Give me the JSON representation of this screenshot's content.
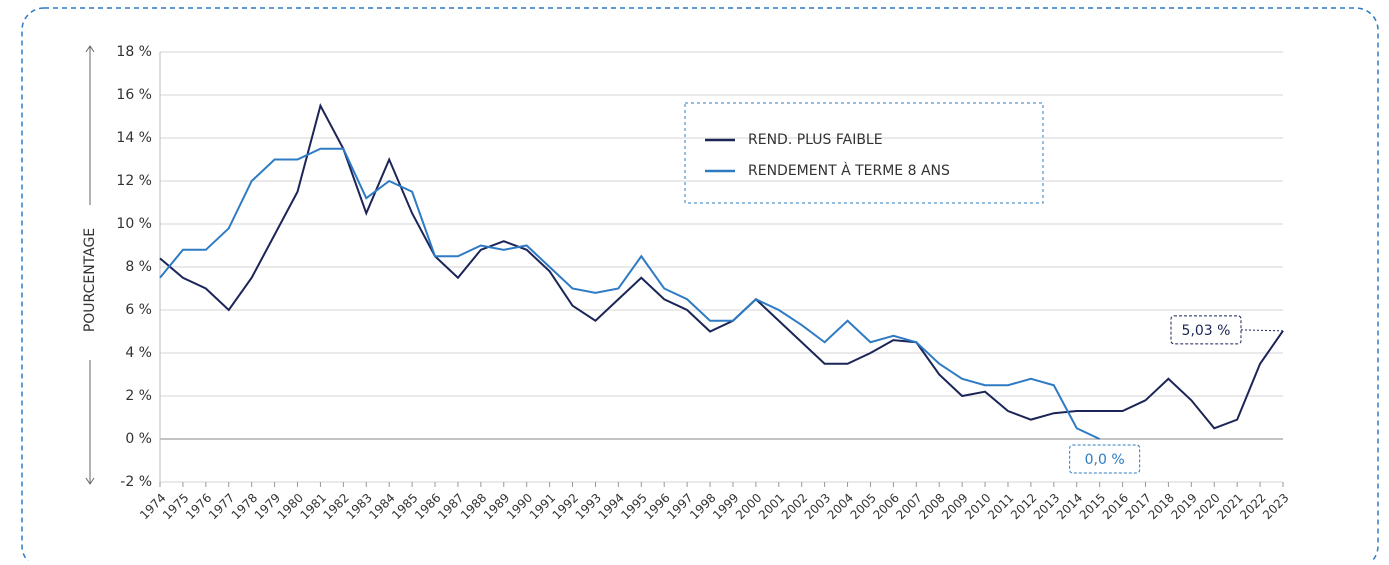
{
  "chart_data": {
    "type": "line",
    "y_label": "POURCENTAGE",
    "x": [
      1974,
      1975,
      1976,
      1977,
      1978,
      1979,
      1980,
      1981,
      1982,
      1983,
      1984,
      1985,
      1986,
      1987,
      1988,
      1989,
      1990,
      1991,
      1992,
      1993,
      1994,
      1995,
      1996,
      1997,
      1998,
      1999,
      2000,
      2001,
      2002,
      2003,
      2004,
      2005,
      2006,
      2007,
      2008,
      2009,
      2010,
      2011,
      2012,
      2013,
      2014,
      2015,
      2016,
      2017,
      2018,
      2019,
      2020,
      2021,
      2022,
      2023
    ],
    "series": [
      {
        "name": "REND. PLUS FAIBLE",
        "color": "#1b2557",
        "values": [
          8.4,
          7.5,
          7.0,
          6.0,
          7.5,
          9.5,
          11.5,
          15.5,
          13.5,
          10.5,
          13.0,
          10.5,
          8.5,
          7.5,
          8.8,
          9.2,
          8.8,
          7.8,
          6.2,
          5.5,
          6.5,
          7.5,
          6.5,
          6.0,
          5.0,
          5.5,
          6.5,
          5.5,
          4.5,
          3.5,
          3.5,
          4.0,
          4.6,
          4.5,
          3.0,
          2.0,
          2.2,
          1.3,
          0.9,
          1.2,
          1.3,
          1.3,
          1.3,
          1.8,
          2.8,
          1.8,
          0.5,
          0.9,
          3.5,
          5.03
        ]
      },
      {
        "name": "RENDEMENT À TERME 8 ANS",
        "color": "#2e7bc4",
        "values": [
          7.5,
          8.8,
          8.8,
          9.8,
          12.0,
          13.0,
          13.0,
          13.5,
          13.5,
          11.2,
          12.0,
          11.5,
          8.5,
          8.5,
          9.0,
          8.8,
          9.0,
          8.0,
          7.0,
          6.8,
          7.0,
          8.5,
          7.0,
          6.5,
          5.5,
          5.5,
          6.5,
          6.0,
          5.3,
          4.5,
          5.5,
          4.5,
          4.8,
          4.5,
          3.5,
          2.8,
          2.5,
          2.5,
          2.8,
          2.5,
          0.5,
          0.0,
          null,
          null,
          null,
          null,
          null,
          null,
          null,
          null
        ]
      }
    ],
    "annotations": [
      "5,03 %",
      "0,0 %"
    ],
    "xlim": [
      1974,
      2023
    ],
    "xticks": [
      1974,
      1975,
      1976,
      1977,
      1978,
      1979,
      1980,
      1981,
      1982,
      1983,
      1984,
      1985,
      1986,
      1987,
      1988,
      1989,
      1990,
      1991,
      1992,
      1993,
      1994,
      1995,
      1996,
      1997,
      1998,
      1999,
      2000,
      2001,
      2002,
      2003,
      2004,
      2005,
      2006,
      2007,
      2008,
      2009,
      2010,
      2011,
      2012,
      2013,
      2014,
      2015,
      2016,
      2017,
      2018,
      2019,
      2020,
      2021,
      2022,
      2023
    ],
    "ylim": [
      -2,
      18
    ],
    "yticks": [
      {
        "value": -2,
        "label": "-2 %"
      },
      {
        "value": 0,
        "label": "0 %"
      },
      {
        "value": 2,
        "label": "2 %"
      },
      {
        "value": 4,
        "label": "4 %"
      },
      {
        "value": 6,
        "label": "6 %"
      },
      {
        "value": 8,
        "label": "8 %"
      },
      {
        "value": 10,
        "label": "10 %"
      },
      {
        "value": 12,
        "label": "12 %"
      },
      {
        "value": 14,
        "label": "14 %"
      },
      {
        "value": 16,
        "label": "16 %"
      },
      {
        "value": 18,
        "label": "18 %"
      }
    ],
    "grid": true
  }
}
